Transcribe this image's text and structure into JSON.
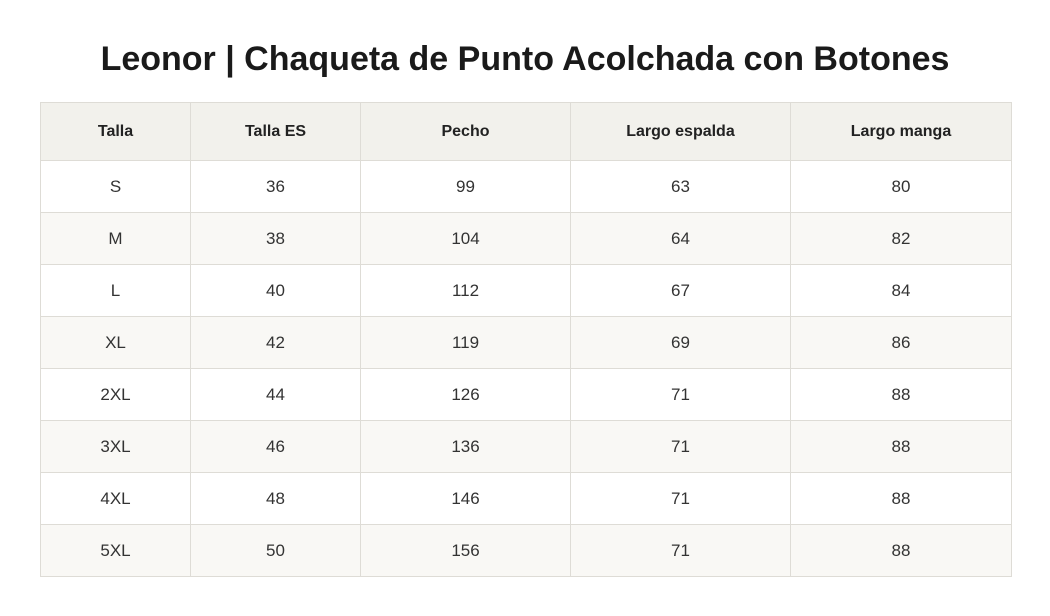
{
  "header": {
    "title": "Leonor | Chaqueta de Punto Acolchada con Botones"
  },
  "table": {
    "columns": [
      "Talla",
      "Talla ES",
      "Pecho",
      "Largo espalda",
      "Largo manga"
    ],
    "rows": [
      [
        "S",
        36,
        99,
        63,
        80
      ],
      [
        "M",
        38,
        104,
        64,
        82
      ],
      [
        "L",
        40,
        112,
        67,
        84
      ],
      [
        "XL",
        42,
        119,
        69,
        86
      ],
      [
        "2XL",
        44,
        126,
        71,
        88
      ],
      [
        "3XL",
        46,
        136,
        71,
        88
      ],
      [
        "4XL",
        48,
        146,
        71,
        88
      ],
      [
        "5XL",
        50,
        156,
        71,
        88
      ]
    ]
  }
}
